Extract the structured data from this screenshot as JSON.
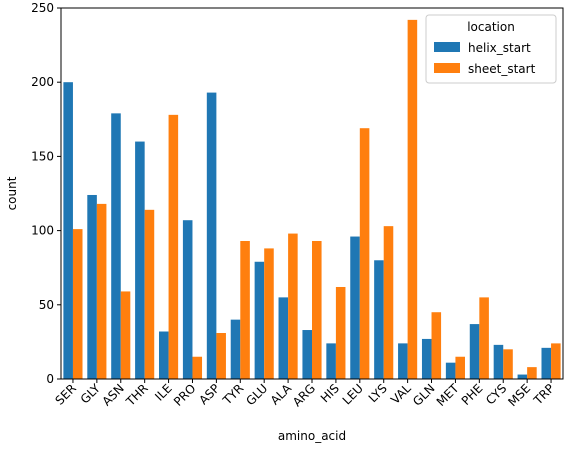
{
  "chart_data": {
    "type": "bar",
    "title": "",
    "xlabel": "amino_acid",
    "ylabel": "count",
    "ylim": [
      0,
      250
    ],
    "yticks": [
      0,
      50,
      100,
      150,
      200,
      250
    ],
    "grid": false,
    "legend": {
      "title": "location",
      "placement": "top-right"
    },
    "categories": [
      "SER",
      "GLY",
      "ASN",
      "THR",
      "ILE",
      "PRO",
      "ASP",
      "TYR",
      "GLU",
      "ALA",
      "ARG",
      "HIS",
      "LEU",
      "LYS",
      "VAL",
      "GLN",
      "MET",
      "PHE",
      "CYS",
      "MSE",
      "TRP"
    ],
    "series": [
      {
        "name": "helix_start",
        "color": "#1f77b4",
        "values": [
          200,
          124,
          179,
          160,
          32,
          107,
          193,
          40,
          79,
          55,
          33,
          24,
          96,
          80,
          24,
          27,
          11,
          37,
          23,
          3,
          21
        ]
      },
      {
        "name": "sheet_start",
        "color": "#ff7f0e",
        "values": [
          101,
          118,
          59,
          114,
          178,
          15,
          31,
          93,
          88,
          98,
          93,
          62,
          169,
          103,
          242,
          45,
          15,
          55,
          20,
          8,
          24
        ]
      }
    ]
  }
}
